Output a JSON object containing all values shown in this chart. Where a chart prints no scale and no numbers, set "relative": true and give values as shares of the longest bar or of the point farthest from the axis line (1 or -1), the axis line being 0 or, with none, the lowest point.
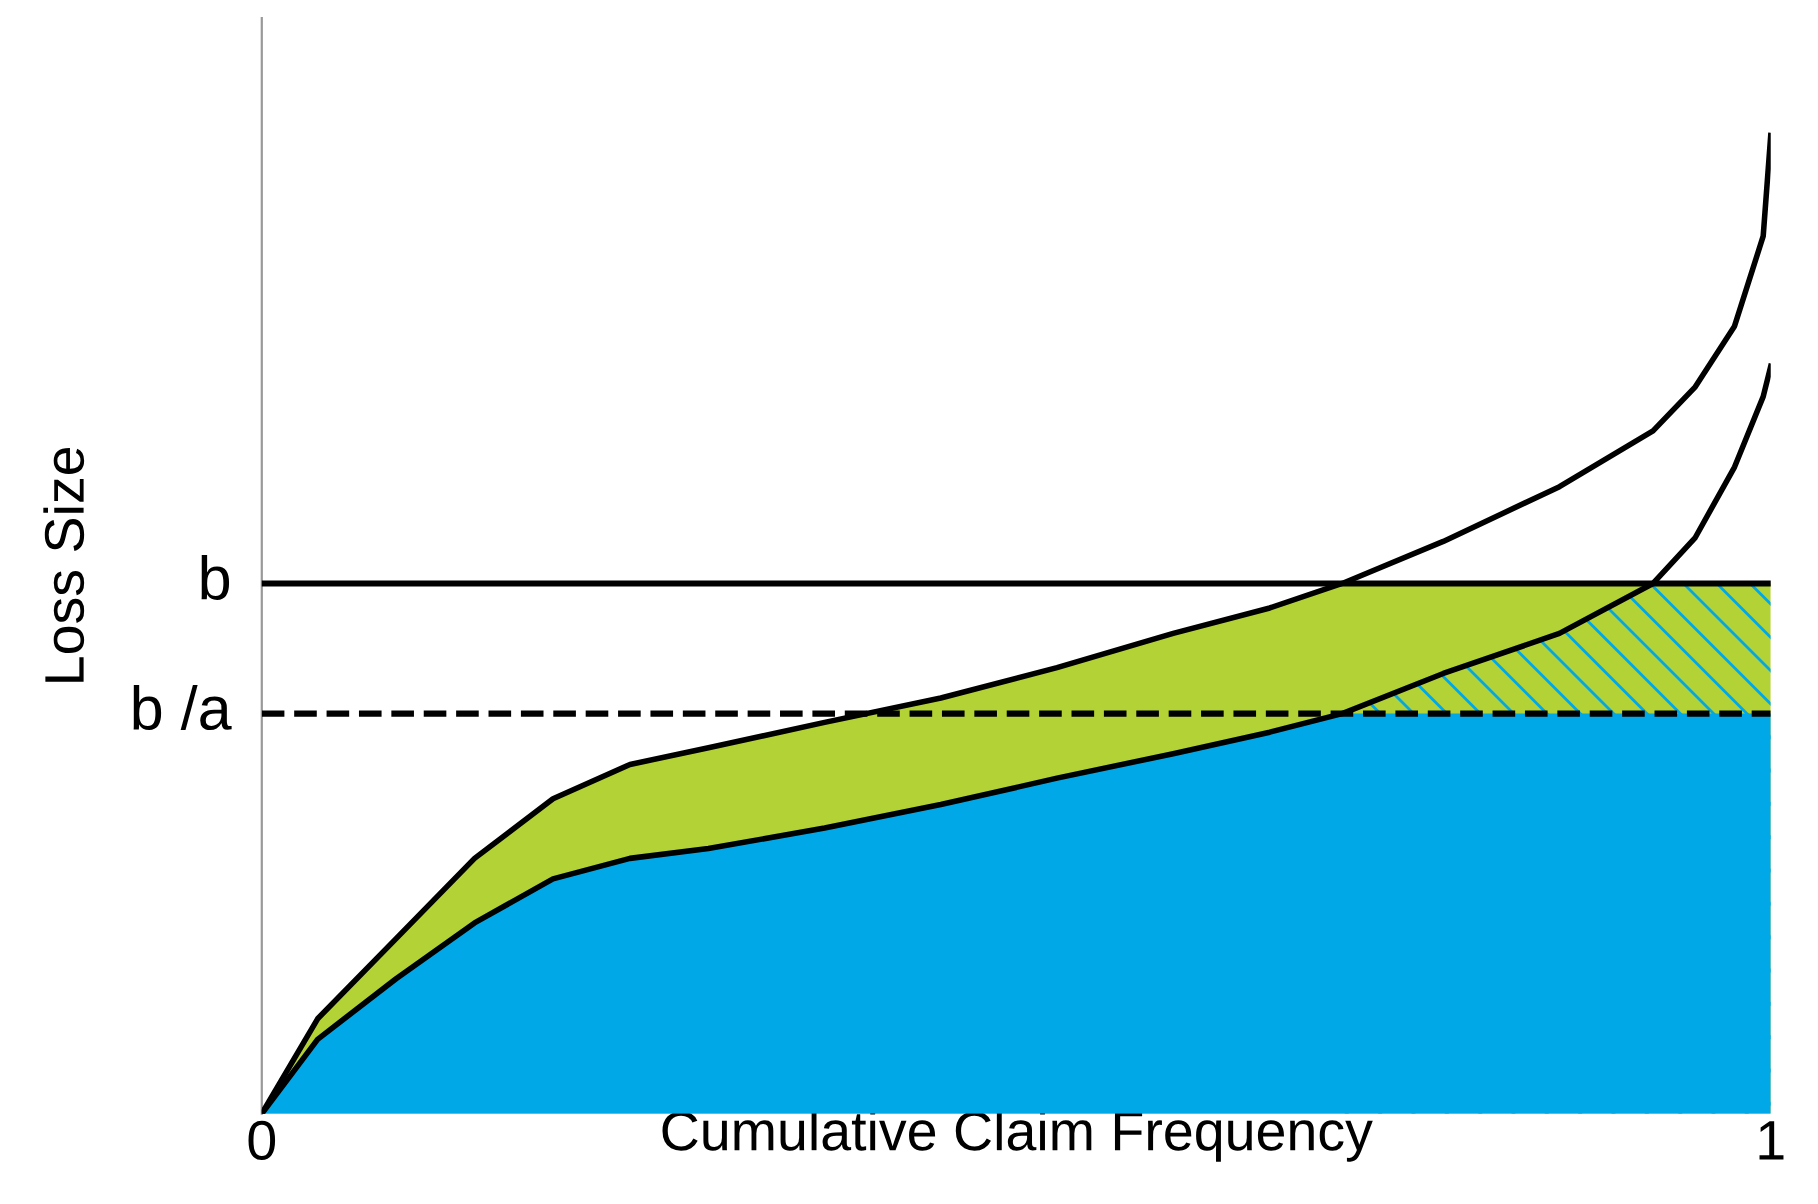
{
  "chart_data": {
    "type": "area",
    "relative": true,
    "xlabel": "Cumulative Claim Frequency",
    "ylabel": "Loss Size",
    "x": [
      0,
      0.037,
      0.089,
      0.141,
      0.193,
      0.244,
      0.296,
      0.373,
      0.45,
      0.527,
      0.604,
      0.668,
      0.716,
      0.783,
      0.86,
      0.922,
      0.95,
      0.976,
      0.995,
      1.0
    ],
    "xlim": [
      0,
      1
    ],
    "xticks": [
      0,
      1
    ],
    "series": [
      {
        "color": "#b3d235",
        "values": [
          0,
          0.097,
          0.179,
          0.261,
          0.322,
          0.357,
          0.374,
          0.4,
          0.425,
          0.456,
          0.491,
          0.517,
          0.542,
          0.542,
          0.542,
          0.542,
          0.542,
          0.542,
          0.542,
          0.542
        ]
      },
      {
        "color": "#00a8e8",
        "values": [
          null,
          null,
          null,
          null,
          null,
          null,
          null,
          null,
          null,
          null,
          null,
          null,
          0.409,
          0.45,
          0.491,
          0.542,
          0.542,
          0.542,
          0.542,
          0.542
        ]
      },
      {
        "color": "#00a8e8",
        "values": [
          0,
          0.076,
          0.138,
          0.195,
          0.24,
          0.261,
          0.271,
          0.292,
          0.316,
          0.343,
          0.368,
          0.39,
          0.409,
          0.409,
          0.409,
          0.409,
          0.409,
          0.409,
          0.409,
          0.409
        ]
      },
      {
        "type": "line",
        "color": "#000000",
        "values": [
          0,
          0.097,
          0.179,
          0.261,
          0.322,
          0.357,
          0.374,
          0.4,
          0.425,
          0.456,
          0.491,
          0.517,
          0.542,
          0.585,
          0.641,
          0.698,
          0.743,
          0.805,
          0.897,
          1.0
        ]
      },
      {
        "type": "line",
        "color": "#000000",
        "values": [
          0,
          0.076,
          0.138,
          0.195,
          0.24,
          0.261,
          0.271,
          0.292,
          0.316,
          0.343,
          0.368,
          0.39,
          0.409,
          0.45,
          0.491,
          0.542,
          0.589,
          0.661,
          0.733,
          0.764
        ]
      }
    ],
    "ref_lines": [
      {
        "axis": "y",
        "value": 0.542,
        "label": "b",
        "color": "#000000",
        "line_style": "solid"
      },
      {
        "axis": "y",
        "value": 0.409,
        "label": "b /a",
        "color": "#000000",
        "line_style": "dashed"
      }
    ],
    "grid": false,
    "legend": false,
    "marker": "none"
  }
}
